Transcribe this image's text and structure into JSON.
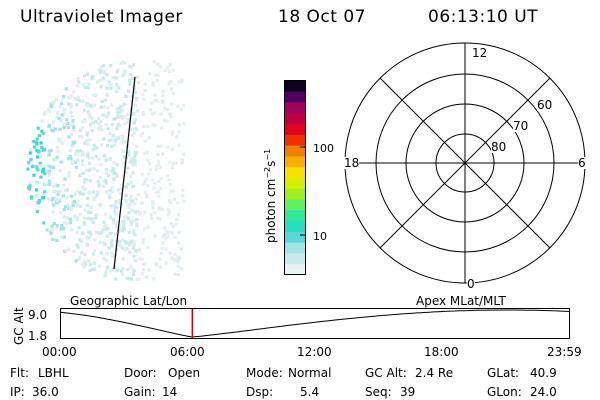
{
  "header": {
    "instrument": "Ultraviolet Imager",
    "date": "18 Oct 07",
    "time": "06:13:10 UT"
  },
  "colorbar": {
    "unit_label": "photon cm",
    "unit_exp1": "−2",
    "unit_mid": "s",
    "unit_exp2": "−1",
    "tick_100": "100",
    "tick_10": "10",
    "colors": [
      "#e8f4f4",
      "#c8eaea",
      "#a0e4e4",
      "#5ad8d8",
      "#22e0c0",
      "#30e89a",
      "#60f060",
      "#a0f020",
      "#d8f000",
      "#f8e000",
      "#f8b000",
      "#f08000",
      "#f03000",
      "#e00020",
      "#c00040",
      "#a00060",
      "#500060",
      "#100020"
    ]
  },
  "polar": {
    "label_12": "12",
    "label_18": "18",
    "label_6": "6",
    "label_0": "0",
    "label_60": "60",
    "label_70": "70",
    "label_80": "80"
  },
  "orbit": {
    "title_left": "Geographic Lat/Lon",
    "title_right": "Apex MLat/MLT",
    "ylabel": "GC Alt",
    "y_top": "9.0",
    "y_bottom": "1.8",
    "x_ticks": [
      "00:00",
      "06:00",
      "12:00",
      "18:00",
      "23:59"
    ],
    "marker_time_fraction": 0.259
  },
  "status": {
    "row1": {
      "flt_label": "Flt:",
      "flt_value": "LBHL",
      "door_label": "Door:",
      "door_value": "Open",
      "mode_label": "Mode:",
      "mode_value": "Normal",
      "gcalt_label": "GC Alt:",
      "gcalt_value": "2.4 Re",
      "glat_label": "GLat:",
      "glat_value": "40.9"
    },
    "row2": {
      "ip_label": "IP:",
      "ip_value": "36.0",
      "gain_label": "Gain:",
      "gain_value": "14",
      "dsp_label": "Dsp:",
      "dsp_value": "5.4",
      "seq_label": "Seq:",
      "seq_value": "39",
      "glon_label": "GLon:",
      "glon_value": "24.0"
    }
  }
}
